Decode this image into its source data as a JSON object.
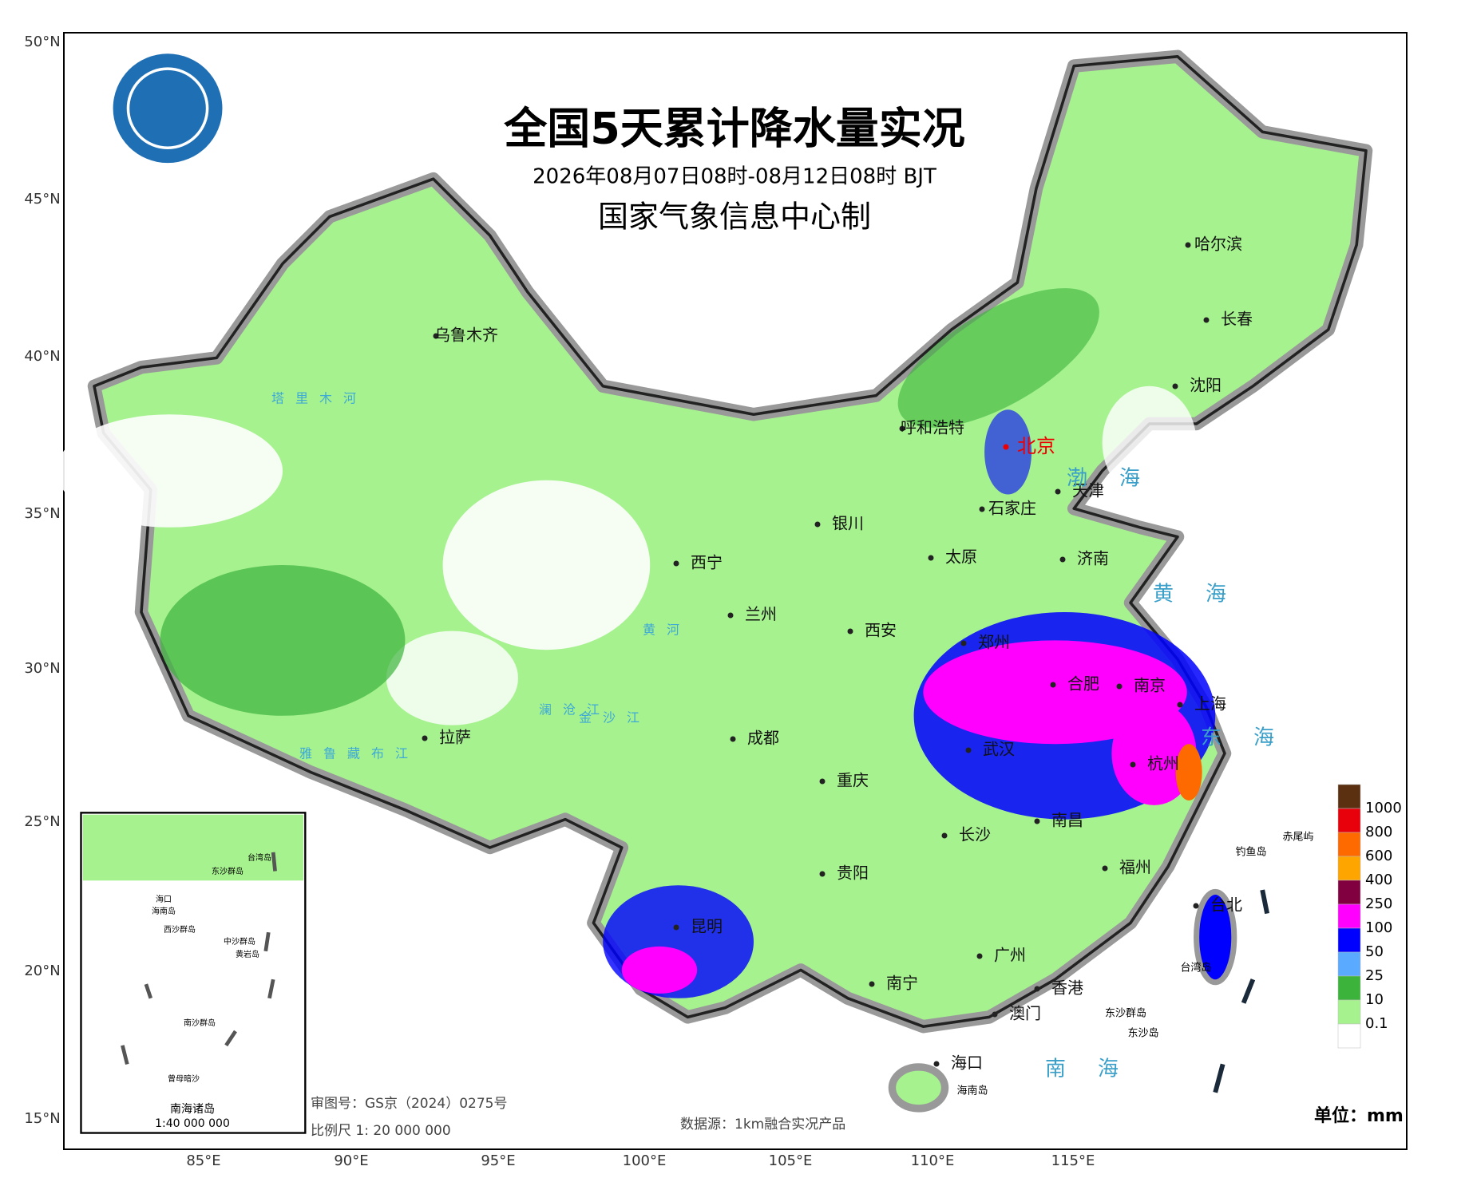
{
  "header": {
    "title": "全国5天累计降水量实况",
    "subtitle": "2026年08月07日08时-08月12日08时 BJT",
    "credit": "国家气象信息中心制"
  },
  "axes": {
    "latitude": [
      "50°N",
      "45°N",
      "40°N",
      "35°N",
      "30°N",
      "25°N",
      "20°N",
      "15°N"
    ],
    "longitude": [
      "85°E",
      "90°E",
      "95°E",
      "100°E",
      "105°E",
      "110°E",
      "115°E"
    ]
  },
  "cities": [
    "乌鲁木齐",
    "哈尔滨",
    "长春",
    "沈阳",
    "呼和浩特",
    "北京",
    "天津",
    "石家庄",
    "银川",
    "太原",
    "济南",
    "西宁",
    "兰州",
    "西安",
    "郑州",
    "合肥",
    "南京",
    "上海",
    "杭州",
    "武汉",
    "成都",
    "重庆",
    "拉萨",
    "南昌",
    "长沙",
    "贵阳",
    "福州",
    "台北",
    "昆明",
    "广州",
    "南宁",
    "香港",
    "澳门",
    "海口"
  ],
  "seas": [
    "渤海",
    "黄海",
    "东海",
    "南海"
  ],
  "rivers": [
    "塔里木河",
    "雅鲁藏布江",
    "黄河",
    "金沙江",
    "澜沧江"
  ],
  "islands": [
    "钓鱼岛",
    "赤尾屿",
    "东沙群岛",
    "东沙岛",
    "台湾岛",
    "海南岛"
  ],
  "legend": {
    "labels": [
      1000,
      800,
      600,
      400,
      250,
      100,
      50,
      25,
      10,
      0.1
    ],
    "colors": [
      "#5a3010",
      "#e8000b",
      "#ff6a00",
      "#ffa500",
      "#800040",
      "#ff00ff",
      "#0000ff",
      "#5aaaff",
      "#3cb43c",
      "#a6f28f",
      "#ffffff"
    ],
    "unit": "单位：mm"
  },
  "inset": {
    "title": "南海诸岛",
    "scale": "1:40 000 000",
    "labels": [
      "台湾岛",
      "东沙群岛",
      "海口",
      "海南岛",
      "西沙群岛",
      "中沙群岛",
      "黄岩岛",
      "南沙群岛",
      "曾母暗沙"
    ]
  },
  "footer": {
    "approval": "审图号：GS京（2024）0275号",
    "scale": "比例尺 1: 20 000 000",
    "source": "数据源：1km融合实况产品"
  }
}
